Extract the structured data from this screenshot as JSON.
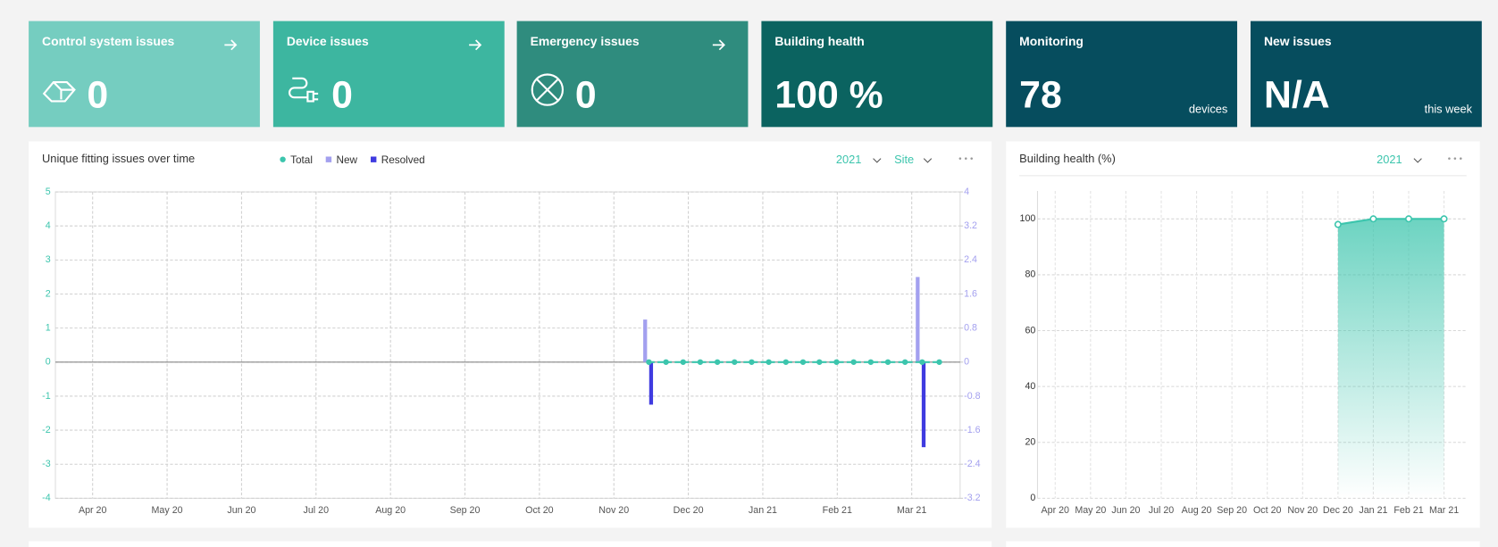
{
  "cards": [
    {
      "title": "Control system issues",
      "value": "0"
    },
    {
      "title": "Device issues",
      "value": "0"
    },
    {
      "title": "Emergency issues",
      "value": "0"
    },
    {
      "title": "Building health",
      "value": "100 %"
    },
    {
      "title": "Monitoring",
      "value": "78",
      "unit": "devices"
    },
    {
      "title": "New issues",
      "value": "N/A",
      "unit": "this week"
    }
  ],
  "chart_data": [
    {
      "type": "combo",
      "title": "Unique fitting issues over time",
      "controls": [
        "2021",
        "Site"
      ],
      "xlim": [
        -0.5,
        11.65
      ],
      "xticks": [
        {
          "value": 0,
          "label": "Apr 20"
        },
        {
          "value": 1,
          "label": "May 20"
        },
        {
          "value": 2,
          "label": "Jun 20"
        },
        {
          "value": 3,
          "label": "Jul 20"
        },
        {
          "value": 4,
          "label": "Aug 20"
        },
        {
          "value": 5,
          "label": "Sep 20"
        },
        {
          "value": 6,
          "label": "Oct 20"
        },
        {
          "value": 7,
          "label": "Nov 20"
        },
        {
          "value": 8,
          "label": "Dec 20"
        },
        {
          "value": 9,
          "label": "Jan 21"
        },
        {
          "value": 10,
          "label": "Feb 21"
        },
        {
          "value": 11,
          "label": "Mar 21"
        }
      ],
      "ylim": [
        -4,
        5
      ],
      "yticks": [
        -4,
        -3,
        -2,
        -1,
        0,
        1,
        2,
        3,
        4,
        5
      ],
      "y2lim": [
        -3.2,
        4
      ],
      "y2ticks": [
        -3.2,
        -2.4,
        -1.6,
        -0.8,
        0,
        0.8,
        1.6,
        2.4,
        3.2,
        4
      ],
      "grid": true,
      "series": [
        {
          "name": "Total",
          "type": "line",
          "color": "#3cc5ad",
          "x": [
            7.47,
            7.7,
            7.93,
            8.16,
            8.39,
            8.62,
            8.85,
            9.08,
            9.31,
            9.54,
            9.76,
            9.99,
            10.22,
            10.45,
            10.68,
            10.91,
            11.14,
            11.37
          ],
          "values": [
            0,
            0,
            0,
            0,
            0,
            0,
            0,
            0,
            0,
            0,
            0,
            0,
            0,
            0,
            0,
            0,
            0,
            0
          ]
        },
        {
          "name": "New",
          "type": "bar",
          "color": "#a3a0ef",
          "axis": "y2",
          "x": [
            7.42,
            11.08
          ],
          "values": [
            1,
            2
          ]
        },
        {
          "name": "Resolved",
          "type": "bar",
          "color": "#3f3be0",
          "axis": "y2",
          "x": [
            7.5,
            11.16
          ],
          "values": [
            -1,
            -2
          ]
        }
      ]
    },
    {
      "type": "area",
      "title": "Building health (%)",
      "controls": [
        "2021"
      ],
      "categories": [
        "Apr 20",
        "May 20",
        "Jun 20",
        "Jul 20",
        "Aug 20",
        "Sep 20",
        "Oct 20",
        "Nov 20",
        "Dec 20",
        "Jan 21",
        "Feb 21",
        "Mar 21"
      ],
      "values": [
        null,
        null,
        null,
        null,
        null,
        null,
        null,
        null,
        98,
        100,
        100,
        100
      ],
      "color": "#3cc5ad",
      "ylim": [
        0,
        110
      ],
      "yticks": [
        0,
        20,
        40,
        60,
        80,
        100
      ],
      "grid": true
    }
  ]
}
